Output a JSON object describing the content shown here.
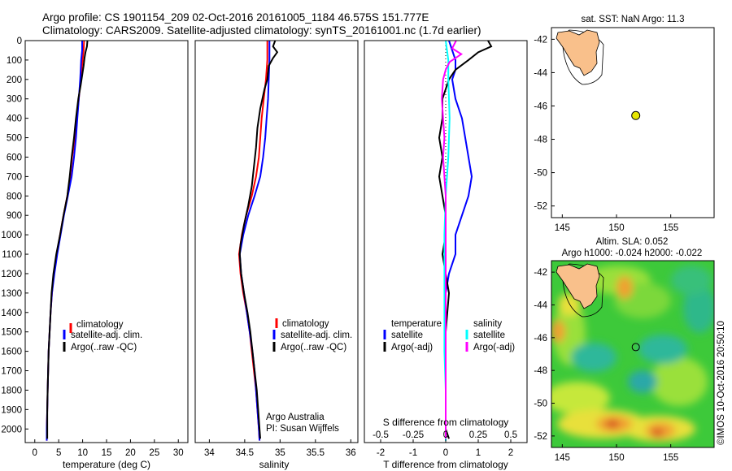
{
  "header": {
    "line1": "Argo profile: CS 1901154_209 02-Oct-2016 20161005_1184 46.575S 151.777E",
    "line2": "Climatology: CARS2009. Satellite-adjusted climatology: synTS_20161001.nc (1.7d earlier)"
  },
  "colors": {
    "climatology": "#ff0000",
    "satellite": "#0000ff",
    "argo": "#000000",
    "salinity_satellite": "#00ffff",
    "salinity_argo": "#ff00ff",
    "land": "#f9c08b",
    "float_marker": "#e6e600"
  },
  "chart_data": [
    {
      "type": "line",
      "xlabel": "temperature (deg C)",
      "ylabel": "",
      "xlim": [
        -2,
        32
      ],
      "ylim": [
        2070,
        0
      ],
      "xticks": [
        "0",
        "5",
        "10",
        "15",
        "20",
        "25",
        "30"
      ],
      "yticks": [
        "0",
        "100",
        "200",
        "300",
        "400",
        "500",
        "600",
        "700",
        "800",
        "900",
        "1000",
        "1100",
        "1200",
        "1300",
        "1400",
        "1500",
        "1600",
        "1700",
        "1800",
        "1900",
        "2000"
      ],
      "legend": [
        "climatology",
        "satellite-adj. clim.",
        "Argo(..raw -QC)"
      ],
      "series": [
        {
          "name": "climatology",
          "points": [
            [
              10.3,
              0
            ],
            [
              10.2,
              50
            ],
            [
              10.0,
              100
            ],
            [
              9.8,
              150
            ],
            [
              9.6,
              200
            ],
            [
              9.2,
              300
            ],
            [
              8.8,
              400
            ],
            [
              8.4,
              500
            ],
            [
              7.8,
              600
            ],
            [
              7.4,
              700
            ],
            [
              6.8,
              800
            ],
            [
              6.0,
              900
            ],
            [
              5.3,
              1000
            ],
            [
              4.6,
              1100
            ],
            [
              4.0,
              1200
            ],
            [
              3.6,
              1300
            ],
            [
              3.3,
              1400
            ],
            [
              3.1,
              1500
            ],
            [
              2.9,
              1600
            ],
            [
              2.8,
              1700
            ],
            [
              2.7,
              1800
            ],
            [
              2.6,
              1900
            ],
            [
              2.5,
              2000
            ],
            [
              2.5,
              2060
            ]
          ]
        },
        {
          "name": "satellite-adj. clim.",
          "points": [
            [
              9.9,
              0
            ],
            [
              9.9,
              50
            ],
            [
              9.7,
              100
            ],
            [
              9.6,
              150
            ],
            [
              9.5,
              200
            ],
            [
              9.2,
              300
            ],
            [
              8.9,
              400
            ],
            [
              8.6,
              500
            ],
            [
              8.2,
              600
            ],
            [
              7.7,
              700
            ],
            [
              6.9,
              800
            ],
            [
              6.1,
              900
            ],
            [
              5.4,
              1000
            ],
            [
              4.7,
              1100
            ],
            [
              4.1,
              1200
            ],
            [
              3.6,
              1300
            ],
            [
              3.3,
              1400
            ],
            [
              3.1,
              1500
            ],
            [
              2.9,
              1600
            ],
            [
              2.8,
              1700
            ],
            [
              2.7,
              1800
            ],
            [
              2.6,
              1900
            ],
            [
              2.5,
              2000
            ],
            [
              2.5,
              2060
            ]
          ]
        },
        {
          "name": "Argo(..raw -QC)",
          "points": [
            [
              11.0,
              0
            ],
            [
              10.9,
              30
            ],
            [
              10.6,
              60
            ],
            [
              10.4,
              90
            ],
            [
              10.2,
              130
            ],
            [
              9.9,
              180
            ],
            [
              9.6,
              230
            ],
            [
              9.1,
              300
            ],
            [
              8.6,
              400
            ],
            [
              8.2,
              500
            ],
            [
              7.7,
              600
            ],
            [
              7.3,
              700
            ],
            [
              6.8,
              800
            ],
            [
              6.0,
              900
            ],
            [
              5.3,
              1000
            ],
            [
              4.5,
              1100
            ],
            [
              3.9,
              1200
            ],
            [
              3.5,
              1300
            ],
            [
              3.3,
              1400
            ],
            [
              3.1,
              1500
            ],
            [
              2.9,
              1600
            ],
            [
              2.8,
              1700
            ],
            [
              2.7,
              1800
            ],
            [
              2.6,
              1900
            ],
            [
              2.6,
              2000
            ],
            [
              2.6,
              2050
            ]
          ]
        }
      ]
    },
    {
      "type": "line",
      "xlabel": "salinity",
      "ylabel": "",
      "xlim": [
        33.8,
        36.1
      ],
      "ylim": [
        2070,
        0
      ],
      "xticks": [
        "34",
        "34.5",
        "35",
        "35.5",
        "36"
      ],
      "legend": [
        "climatology",
        "satellite-adj. clim.",
        "Argo(..raw -QC)"
      ],
      "annotations": [
        "Argo Australia",
        "PI: Susan Wijffels"
      ],
      "series": [
        {
          "name": "climatology",
          "points": [
            [
              34.82,
              0
            ],
            [
              34.82,
              100
            ],
            [
              34.8,
              200
            ],
            [
              34.77,
              300
            ],
            [
              34.74,
              400
            ],
            [
              34.72,
              500
            ],
            [
              34.7,
              600
            ],
            [
              34.66,
              700
            ],
            [
              34.6,
              800
            ],
            [
              34.52,
              900
            ],
            [
              34.46,
              1000
            ],
            [
              34.42,
              1100
            ],
            [
              34.44,
              1200
            ],
            [
              34.48,
              1300
            ],
            [
              34.53,
              1400
            ],
            [
              34.57,
              1500
            ],
            [
              34.6,
              1600
            ],
            [
              34.63,
              1700
            ],
            [
              34.66,
              1800
            ],
            [
              34.68,
              1900
            ],
            [
              34.7,
              2000
            ],
            [
              34.71,
              2060
            ]
          ]
        },
        {
          "name": "satellite-adj. clim.",
          "points": [
            [
              34.85,
              0
            ],
            [
              34.85,
              100
            ],
            [
              34.84,
              200
            ],
            [
              34.83,
              300
            ],
            [
              34.81,
              400
            ],
            [
              34.79,
              500
            ],
            [
              34.76,
              600
            ],
            [
              34.72,
              700
            ],
            [
              34.64,
              800
            ],
            [
              34.55,
              900
            ],
            [
              34.48,
              1000
            ],
            [
              34.43,
              1100
            ],
            [
              34.45,
              1200
            ],
            [
              34.49,
              1300
            ],
            [
              34.53,
              1400
            ],
            [
              34.57,
              1500
            ],
            [
              34.61,
              1600
            ],
            [
              34.64,
              1700
            ],
            [
              34.66,
              1800
            ],
            [
              34.68,
              1900
            ],
            [
              34.7,
              2000
            ],
            [
              34.71,
              2060
            ]
          ]
        },
        {
          "name": "Argo(..raw -QC)",
          "points": [
            [
              34.93,
              0
            ],
            [
              34.9,
              30
            ],
            [
              34.96,
              60
            ],
            [
              34.9,
              90
            ],
            [
              34.84,
              130
            ],
            [
              34.82,
              200
            ],
            [
              34.78,
              250
            ],
            [
              34.72,
              350
            ],
            [
              34.68,
              450
            ],
            [
              34.66,
              550
            ],
            [
              34.63,
              650
            ],
            [
              34.6,
              750
            ],
            [
              34.55,
              850
            ],
            [
              34.49,
              950
            ],
            [
              34.44,
              1050
            ],
            [
              34.43,
              1100
            ],
            [
              34.45,
              1200
            ],
            [
              34.49,
              1300
            ],
            [
              34.54,
              1400
            ],
            [
              34.58,
              1500
            ],
            [
              34.61,
              1600
            ],
            [
              34.64,
              1700
            ],
            [
              34.67,
              1800
            ],
            [
              34.69,
              1900
            ],
            [
              34.71,
              2000
            ],
            [
              34.72,
              2050
            ]
          ]
        }
      ]
    },
    {
      "type": "line",
      "xlabel": "T difference from climatology",
      "xlabel_top": "S difference from climatology",
      "xlim": [
        -2.5,
        2.5
      ],
      "x_secondary_lim": [
        -0.625,
        0.625
      ],
      "ylim": [
        2070,
        0
      ],
      "xticks": [
        "-2",
        "-1",
        "0",
        "1",
        "2"
      ],
      "xticks_secondary": [
        "-0.5",
        "-0.25",
        "0",
        "0.25",
        "0.5"
      ],
      "legend_groups": [
        {
          "title": "temperature",
          "entries": [
            "satellite",
            "Argo(-adj)"
          ]
        },
        {
          "title": "salinity",
          "entries": [
            "satellite",
            "Argo(-adj)"
          ]
        }
      ],
      "series": [
        {
          "name": "temperature satellite",
          "points": [
            [
              0.1,
              0
            ],
            [
              0.2,
              50
            ],
            [
              0.3,
              100
            ],
            [
              0.3,
              150
            ],
            [
              0.2,
              200
            ],
            [
              0.3,
              300
            ],
            [
              0.5,
              400
            ],
            [
              0.6,
              500
            ],
            [
              0.7,
              600
            ],
            [
              0.8,
              700
            ],
            [
              0.7,
              800
            ],
            [
              0.5,
              900
            ],
            [
              0.3,
              1000
            ],
            [
              0.3,
              1100
            ],
            [
              0.1,
              1200
            ],
            [
              0,
              1300
            ],
            [
              0,
              1500
            ],
            [
              0,
              1800
            ],
            [
              0,
              2000
            ],
            [
              0,
              2060
            ]
          ]
        },
        {
          "name": "temperature Argo(-adj)",
          "points": [
            [
              1.3,
              0
            ],
            [
              1.4,
              30
            ],
            [
              1.0,
              60
            ],
            [
              0.7,
              100
            ],
            [
              0.3,
              150
            ],
            [
              0.1,
              200
            ],
            [
              -0.1,
              300
            ],
            [
              -0.1,
              400
            ],
            [
              -0.2,
              500
            ],
            [
              -0.1,
              600
            ],
            [
              -0.2,
              700
            ],
            [
              -0.1,
              800
            ],
            [
              0.0,
              900
            ],
            [
              0.0,
              1000
            ],
            [
              -0.1,
              1100
            ],
            [
              0.0,
              1200
            ],
            [
              0.1,
              1300
            ],
            [
              0,
              1500
            ],
            [
              0,
              1800
            ],
            [
              0,
              2000
            ],
            [
              0.1,
              2050
            ]
          ]
        },
        {
          "name": "salinity satellite",
          "points": [
            [
              0.0,
              0
            ],
            [
              0.02,
              100
            ],
            [
              0.02,
              200
            ],
            [
              0.03,
              400
            ],
            [
              0.02,
              600
            ],
            [
              0.0,
              800
            ],
            [
              -0.01,
              1000
            ],
            [
              -0.01,
              1200
            ],
            [
              -0.01,
              1400
            ],
            [
              -0.01,
              1600
            ],
            [
              0.0,
              1800
            ],
            [
              0.0,
              2000
            ],
            [
              0.0,
              2060
            ]
          ]
        },
        {
          "name": "salinity Argo(-adj)",
          "points": [
            [
              0.08,
              0
            ],
            [
              0.05,
              40
            ],
            [
              0.12,
              70
            ],
            [
              0.03,
              110
            ],
            [
              0.0,
              150
            ],
            [
              -0.02,
              200
            ],
            [
              -0.03,
              300
            ],
            [
              -0.02,
              400
            ],
            [
              -0.01,
              500
            ],
            [
              -0.02,
              600
            ],
            [
              -0.01,
              700
            ],
            [
              0.0,
              800
            ],
            [
              0.0,
              900
            ],
            [
              0.0,
              1000
            ],
            [
              0.0,
              1100
            ],
            [
              0.0,
              1200
            ],
            [
              0.0,
              1400
            ],
            [
              0.0,
              1600
            ],
            [
              0.0,
              1800
            ],
            [
              0.0,
              2000
            ],
            [
              0.0,
              2050
            ]
          ]
        }
      ]
    },
    {
      "type": "scatter",
      "title": "sat. SST: NaN Argo: 11.3",
      "xlim": [
        144,
        159
      ],
      "ylim": [
        -52.7,
        -41.3
      ],
      "xticks": [
        "145",
        "150",
        "155"
      ],
      "yticks": [
        "-42",
        "-44",
        "-46",
        "-48",
        "-50",
        "-52"
      ],
      "points": [
        [
          151.777,
          -46.575
        ]
      ]
    },
    {
      "type": "heatmap",
      "title_lines": [
        "Altim. SLA: 0.052",
        "Argo h1000: -0.024 h2000: -0.022"
      ],
      "xlim": [
        144,
        159
      ],
      "ylim": [
        -52.7,
        -41.3
      ],
      "xticks": [
        "145",
        "150",
        "155"
      ],
      "yticks": [
        "-42",
        "-44",
        "-46",
        "-48",
        "-50",
        "-52"
      ],
      "points": [
        [
          151.777,
          -46.575
        ]
      ]
    }
  ],
  "footer": {
    "credit": "©IMOS 10-Oct-2016 20:50:10"
  }
}
